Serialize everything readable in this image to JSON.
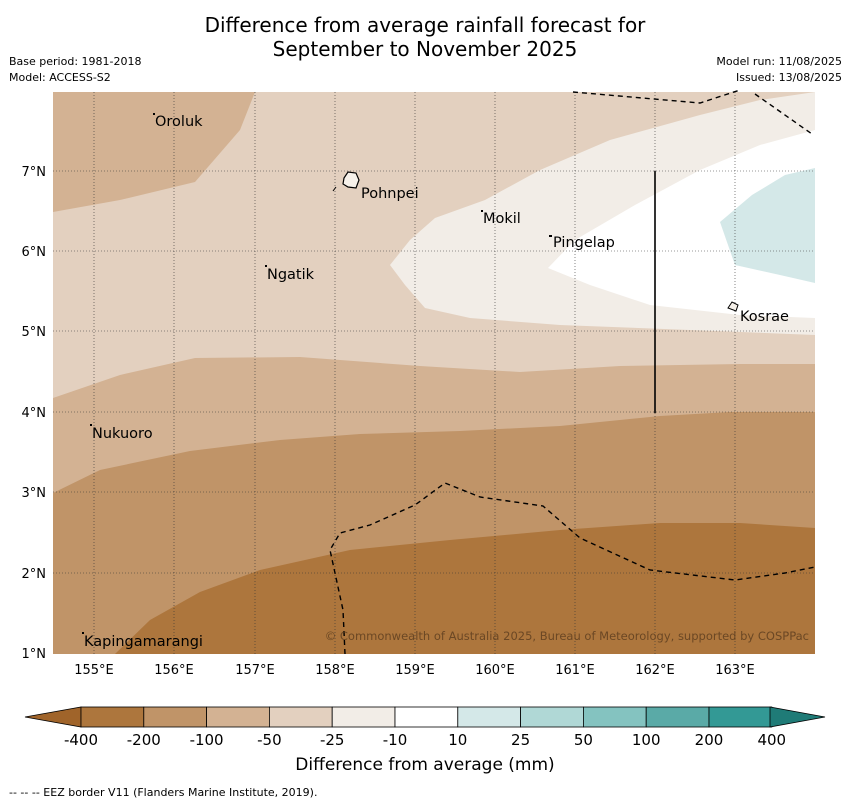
{
  "title_line1": "Difference from average rainfall forecast for",
  "title_line2": "September to November 2025",
  "meta_left": {
    "base_period": "Base period: 1981-2018",
    "model": "Model: ACCESS-S2"
  },
  "meta_right": {
    "model_run": "Model run: 11/08/2025",
    "issued": "Issued: 13/08/2025"
  },
  "map": {
    "lon_ticks": [
      "155°E",
      "156°E",
      "157°E",
      "158°E",
      "159°E",
      "160°E",
      "161°E",
      "162°E",
      "163°E"
    ],
    "lat_ticks": [
      "7°N",
      "6°N",
      "5°N",
      "4°N",
      "3°N",
      "2°N",
      "1°N"
    ],
    "places": [
      "Oroluk",
      "Pohnpei",
      "Mokil",
      "Pingelap",
      "Ngatik",
      "Kosrae",
      "Nukuoro",
      "Kapingamarangi"
    ],
    "copyright": "© Commonwealth of Australia 2025, Bureau of Meteorology, supported by COSPPac"
  },
  "colorbar": {
    "title": "Difference from average (mm)",
    "labels": [
      "-400",
      "-200",
      "-100",
      "-50",
      "-25",
      "-10",
      "10",
      "25",
      "50",
      "100",
      "200",
      "400"
    ],
    "colors": [
      "#a0642a",
      "#ad763d",
      "#c09468",
      "#d3b293",
      "#e3d0bf",
      "#f2ede7",
      "#ffffff",
      "#d4e8e8",
      "#b0d8d6",
      "#84c3c0",
      "#5aaaa7",
      "#339995",
      "#1f7b77"
    ]
  },
  "footnote": "-- -- -- EEZ border V11 (Flanders Marine Institute, 2019)."
}
